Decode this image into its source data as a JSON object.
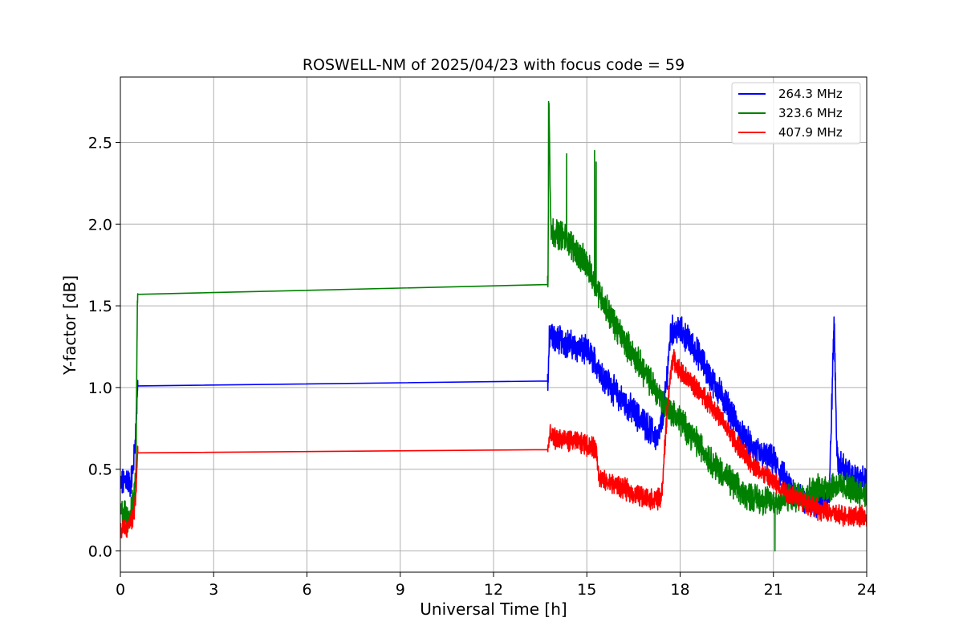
{
  "chart_data": {
    "type": "line",
    "title": "ROSWELL-NM of 2025/04/23 with focus code = 59",
    "xlabel": "Universal Time [h]",
    "ylabel": "Y-factor [dB]",
    "xlim": [
      0,
      24
    ],
    "ylim": [
      -0.13,
      2.9
    ],
    "xticks": [
      0,
      3,
      6,
      9,
      12,
      15,
      18,
      21,
      24
    ],
    "yticks": [
      0.0,
      0.5,
      1.0,
      1.5,
      2.0,
      2.5
    ],
    "xtick_labels": [
      "0",
      "3",
      "6",
      "9",
      "12",
      "15",
      "18",
      "21",
      "24"
    ],
    "ytick_labels": [
      "0.0",
      "0.5",
      "1.0",
      "1.5",
      "2.0",
      "2.5"
    ],
    "grid": true,
    "legend_position": "top-right",
    "series": [
      {
        "name": "264.3 MHz",
        "color": "#0000ff",
        "x": [
          0.0,
          0.1,
          0.2,
          0.3,
          0.4,
          0.45,
          0.5,
          0.55,
          13.75,
          13.8,
          14.0,
          14.3,
          14.6,
          15.0,
          15.3,
          15.6,
          16.0,
          16.5,
          17.0,
          17.3,
          17.5,
          17.7,
          18.0,
          18.3,
          18.6,
          19.0,
          19.5,
          20.0,
          20.5,
          21.0,
          21.5,
          22.0,
          22.5,
          22.8,
          22.95,
          23.05,
          23.5,
          24.0
        ],
        "y": [
          0.4,
          0.42,
          0.45,
          0.4,
          0.48,
          0.6,
          0.75,
          1.01,
          1.04,
          1.32,
          1.3,
          1.28,
          1.25,
          1.22,
          1.15,
          1.05,
          0.95,
          0.85,
          0.75,
          0.68,
          0.9,
          1.35,
          1.35,
          1.28,
          1.2,
          1.05,
          0.9,
          0.7,
          0.6,
          0.55,
          0.4,
          0.3,
          0.3,
          0.35,
          1.42,
          0.55,
          0.45,
          0.42
        ],
        "noise": 0.07
      },
      {
        "name": "323.6 MHz",
        "color": "#008000",
        "x": [
          0.0,
          0.1,
          0.2,
          0.3,
          0.4,
          0.45,
          0.5,
          0.55,
          13.75,
          13.78,
          13.85,
          14.0,
          14.3,
          14.6,
          15.0,
          15.3,
          15.6,
          16.0,
          16.5,
          17.0,
          17.5,
          18.0,
          18.5,
          19.0,
          19.5,
          20.0,
          20.5,
          21.0,
          21.5,
          22.0,
          22.5,
          23.0,
          23.5,
          24.0
        ],
        "y": [
          0.22,
          0.25,
          0.2,
          0.22,
          0.28,
          0.35,
          0.5,
          1.57,
          1.63,
          2.75,
          1.95,
          1.95,
          1.92,
          1.85,
          1.75,
          1.62,
          1.5,
          1.35,
          1.2,
          1.05,
          0.9,
          0.8,
          0.68,
          0.55,
          0.45,
          0.35,
          0.32,
          0.3,
          0.32,
          0.35,
          0.38,
          0.4,
          0.38,
          0.35
        ],
        "noise": 0.07,
        "spikes": [
          [
            13.77,
            2.75
          ],
          [
            14.35,
            2.43
          ],
          [
            15.25,
            2.45
          ],
          [
            15.3,
            2.38
          ],
          [
            21.05,
            0.0
          ]
        ]
      },
      {
        "name": "407.9 MHz",
        "color": "#ff0000",
        "x": [
          0.0,
          0.1,
          0.2,
          0.3,
          0.4,
          0.45,
          0.5,
          0.55,
          13.75,
          13.8,
          14.2,
          14.6,
          15.0,
          15.3,
          15.4,
          15.6,
          16.0,
          16.5,
          17.0,
          17.4,
          17.6,
          17.75,
          18.0,
          18.5,
          19.0,
          19.5,
          20.0,
          20.5,
          21.0,
          21.5,
          22.0,
          22.5,
          23.0,
          23.5,
          24.0
        ],
        "y": [
          0.1,
          0.15,
          0.12,
          0.18,
          0.2,
          0.25,
          0.35,
          0.6,
          0.62,
          0.7,
          0.68,
          0.67,
          0.65,
          0.62,
          0.45,
          0.42,
          0.4,
          0.35,
          0.32,
          0.32,
          0.9,
          1.18,
          1.1,
          1.0,
          0.9,
          0.75,
          0.6,
          0.5,
          0.42,
          0.35,
          0.3,
          0.25,
          0.22,
          0.22,
          0.2
        ],
        "noise": 0.05
      }
    ]
  }
}
